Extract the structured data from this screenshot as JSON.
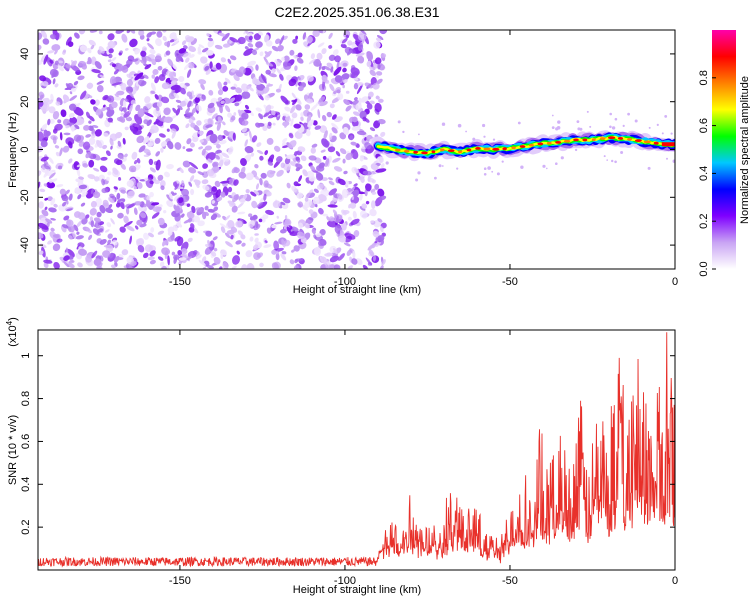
{
  "chart_data": [
    {
      "type": "heatmap",
      "title": "C2E2.2025.351.06.38.E31",
      "xlabel": "Height of straight line (km)",
      "ylabel": "Frequency (Hz)",
      "xlim": [
        -193,
        0
      ],
      "ylim": [
        -50,
        50
      ],
      "xticks": [
        "-150",
        "-100",
        "-50",
        "0"
      ],
      "yticks": [
        "40",
        "20",
        "0",
        "-20",
        "-40"
      ],
      "noise_region_x": [
        -193,
        -90
      ],
      "signal_region_x": [
        -90,
        0
      ],
      "signal_ridge": [
        {
          "x": -90,
          "y": 1.5
        },
        {
          "x": -85,
          "y": 0
        },
        {
          "x": -80,
          "y": -1
        },
        {
          "x": -75,
          "y": -1.5
        },
        {
          "x": -70,
          "y": 0
        },
        {
          "x": -65,
          "y": -1
        },
        {
          "x": -60,
          "y": 0.5
        },
        {
          "x": -55,
          "y": 0
        },
        {
          "x": -50,
          "y": 0.5
        },
        {
          "x": -45,
          "y": 1.5
        },
        {
          "x": -40,
          "y": 2.5
        },
        {
          "x": -35,
          "y": 3
        },
        {
          "x": -30,
          "y": 4
        },
        {
          "x": -25,
          "y": 4
        },
        {
          "x": -20,
          "y": 5
        },
        {
          "x": -15,
          "y": 4.5
        },
        {
          "x": -10,
          "y": 3.5
        },
        {
          "x": -5,
          "y": 2.5
        },
        {
          "x": 0,
          "y": 2
        }
      ],
      "colorbar": {
        "label": "Normalized spectral amplitude",
        "range": [
          0,
          1
        ],
        "ticks": [
          "0.0",
          "0.2",
          "0.4",
          "0.6",
          "0.8"
        ],
        "colors": [
          "#ffffff",
          "#c9a4f4",
          "#7f00ff",
          "#0000ff",
          "#00c8ff",
          "#00ff00",
          "#ffff00",
          "#ff8000",
          "#ff0000",
          "#ff00aa"
        ]
      }
    },
    {
      "type": "line",
      "xlabel": "Height of straight line (km)",
      "ylabel": "SNR (10 * v/v)",
      "y_scale_label": "(x10",
      "y_scale_exp": "4",
      "y_scale_close": ")",
      "xlim": [
        -193,
        0
      ],
      "ylim": [
        0,
        11200
      ],
      "xticks": [
        "-150",
        "-100",
        "-50",
        "0"
      ],
      "yticks": [
        "0.2",
        "0.4",
        "0.6",
        "0.8",
        "1"
      ],
      "color": "#e8302a",
      "series": [
        {
          "name": "SNR",
          "x": [
            -193,
            -180,
            -160,
            -140,
            -120,
            -100,
            -92,
            -89,
            -86,
            -83,
            -80,
            -77,
            -74,
            -71,
            -68,
            -65,
            -62,
            -59,
            -56,
            -53,
            -50,
            -47,
            -44,
            -41,
            -38,
            -35,
            -32,
            -29,
            -26,
            -23,
            -20,
            -17,
            -14,
            -11,
            -8,
            -5,
            -2,
            0
          ],
          "y": [
            350,
            380,
            360,
            400,
            380,
            420,
            500,
            1200,
            1800,
            1400,
            2800,
            1700,
            2200,
            1500,
            3200,
            2100,
            2600,
            1900,
            1300,
            800,
            2500,
            3800,
            2900,
            5500,
            3500,
            6000,
            4200,
            7300,
            3600,
            8200,
            4500,
            9500,
            5000,
            10800,
            6500,
            7800,
            8300,
            7600
          ]
        }
      ]
    }
  ]
}
